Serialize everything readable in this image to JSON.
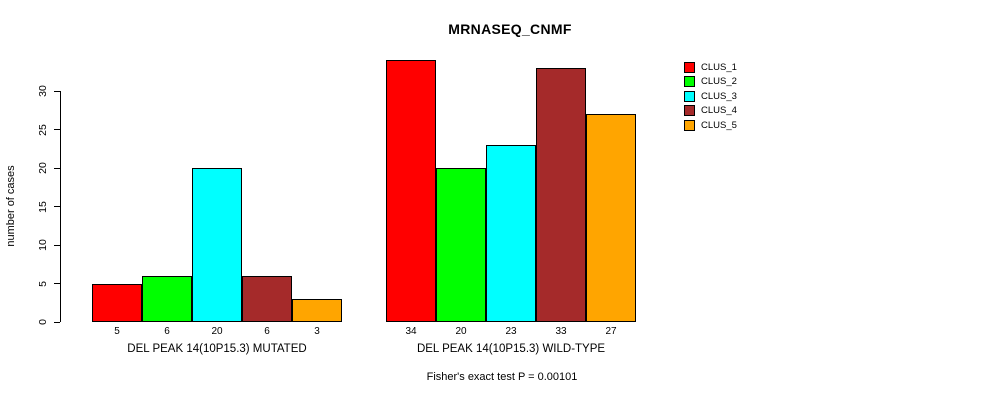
{
  "chart_data": {
    "type": "bar",
    "title": "MRNASEQ_CNMF",
    "ylabel": "number of cases",
    "yticks": [
      0,
      5,
      10,
      15,
      20,
      25,
      30
    ],
    "ylim": [
      0,
      34
    ],
    "grid": false,
    "legend_position": "right",
    "background": "#FFFFFF",
    "bar_border_color": "#000000",
    "axis_color": "#000000",
    "series_names": [
      "CLUS_1",
      "CLUS_2",
      "CLUS_3",
      "CLUS_4",
      "CLUS_5"
    ],
    "series_colors": [
      "#FF0000",
      "#00FF00",
      "#00FFFF",
      "#A52A2A",
      "#FFA500"
    ],
    "groups": [
      {
        "label": "DEL PEAK 14(10P15.3) MUTATED",
        "values": [
          5,
          6,
          20,
          6,
          3
        ]
      },
      {
        "label": "DEL PEAK 14(10P15.3) WILD-TYPE",
        "values": [
          34,
          20,
          23,
          33,
          27
        ]
      }
    ],
    "annotation": "Fisher's exact test P = 0.00101"
  }
}
